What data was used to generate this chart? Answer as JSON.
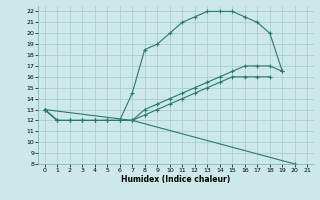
{
  "xlabel": "Humidex (Indice chaleur)",
  "bg_color": "#cce8e8",
  "grid_color": "#aad0d0",
  "line_color": "#2a7a6a",
  "xlim": [
    -0.5,
    21.5
  ],
  "ylim": [
    8,
    22.5
  ],
  "xticks": [
    0,
    1,
    2,
    3,
    4,
    5,
    6,
    7,
    8,
    9,
    10,
    11,
    12,
    13,
    14,
    15,
    16,
    17,
    18,
    19,
    20,
    21
  ],
  "yticks": [
    8,
    9,
    10,
    11,
    12,
    13,
    14,
    15,
    16,
    17,
    18,
    19,
    20,
    21,
    22
  ],
  "series": [
    {
      "x": [
        0,
        1,
        2,
        3,
        4,
        5,
        6,
        7,
        8,
        9,
        10,
        11,
        12,
        13,
        14,
        15,
        16,
        17,
        18,
        19
      ],
      "y": [
        13,
        12,
        12,
        12,
        12,
        12,
        12,
        14.5,
        18.5,
        19.0,
        20.0,
        21.0,
        21.5,
        22.0,
        22.0,
        22.0,
        21.5,
        21.0,
        20.0,
        16.5
      ]
    },
    {
      "x": [
        0,
        1,
        2,
        3,
        4,
        5,
        6,
        7,
        8,
        9,
        10,
        11,
        12,
        13,
        14,
        15,
        16,
        17,
        18,
        19
      ],
      "y": [
        13,
        12,
        12,
        12,
        12,
        12,
        12,
        12,
        13.0,
        13.5,
        14.0,
        14.5,
        15.0,
        15.5,
        16.0,
        16.5,
        17.0,
        17.0,
        17.0,
        16.5
      ]
    },
    {
      "x": [
        0,
        1,
        2,
        3,
        4,
        5,
        6,
        7,
        8,
        9,
        10,
        11,
        12,
        13,
        14,
        15,
        16,
        17,
        18
      ],
      "y": [
        13,
        12,
        12,
        12,
        12,
        12,
        12,
        12,
        12.5,
        13.0,
        13.5,
        14.0,
        14.5,
        15.0,
        15.5,
        16.0,
        16.0,
        16.0,
        16.0
      ]
    },
    {
      "x": [
        0,
        7,
        20,
        21
      ],
      "y": [
        13,
        12,
        8.0,
        7.5
      ]
    }
  ]
}
